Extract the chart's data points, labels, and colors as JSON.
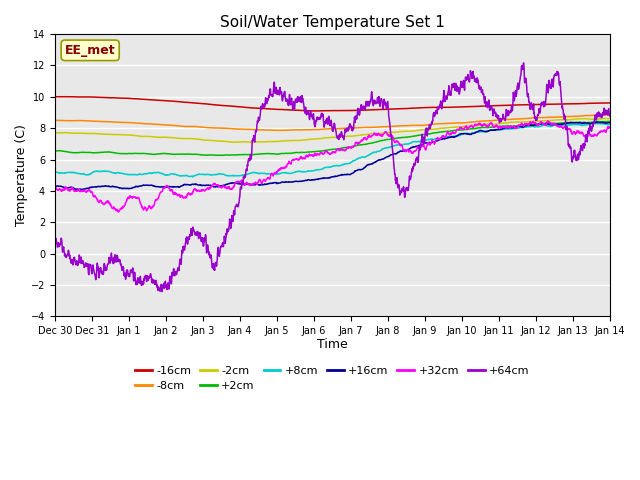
{
  "title": "Soil/Water Temperature Set 1",
  "xlabel": "Time",
  "ylabel": "Temperature (C)",
  "ylim": [
    -4,
    14
  ],
  "yticks": [
    -4,
    -2,
    0,
    2,
    4,
    6,
    8,
    10,
    12,
    14
  ],
  "bg_color": "#e8e8e8",
  "grid_color": "#ffffff",
  "watermark": "EE_met",
  "watermark_fg": "#880000",
  "watermark_bg": "#ffffcc",
  "watermark_edge": "#999900",
  "series_colors": [
    "#cc0000",
    "#ff8800",
    "#cccc00",
    "#00bb00",
    "#00cccc",
    "#000099",
    "#ff00ff",
    "#9900cc"
  ],
  "series_labels": [
    "-16cm",
    "-8cm",
    "-2cm",
    "+2cm",
    "+8cm",
    "+16cm",
    "+32cm",
    "+64cm"
  ],
  "tick_labels": [
    "Dec 30",
    "Dec 31",
    "Jan 1",
    "Jan 2",
    "Jan 3",
    "Jan 4",
    "Jan 5",
    "Jan 6",
    "Jan 7",
    "Jan 8",
    "Jan 9",
    "Jan 10",
    "Jan 11",
    "Jan 12",
    "Jan 13",
    "Jan 14"
  ],
  "tick_positions": [
    -1,
    0,
    1,
    2,
    3,
    4,
    5,
    6,
    7,
    8,
    9,
    10,
    11,
    12,
    13,
    14
  ]
}
